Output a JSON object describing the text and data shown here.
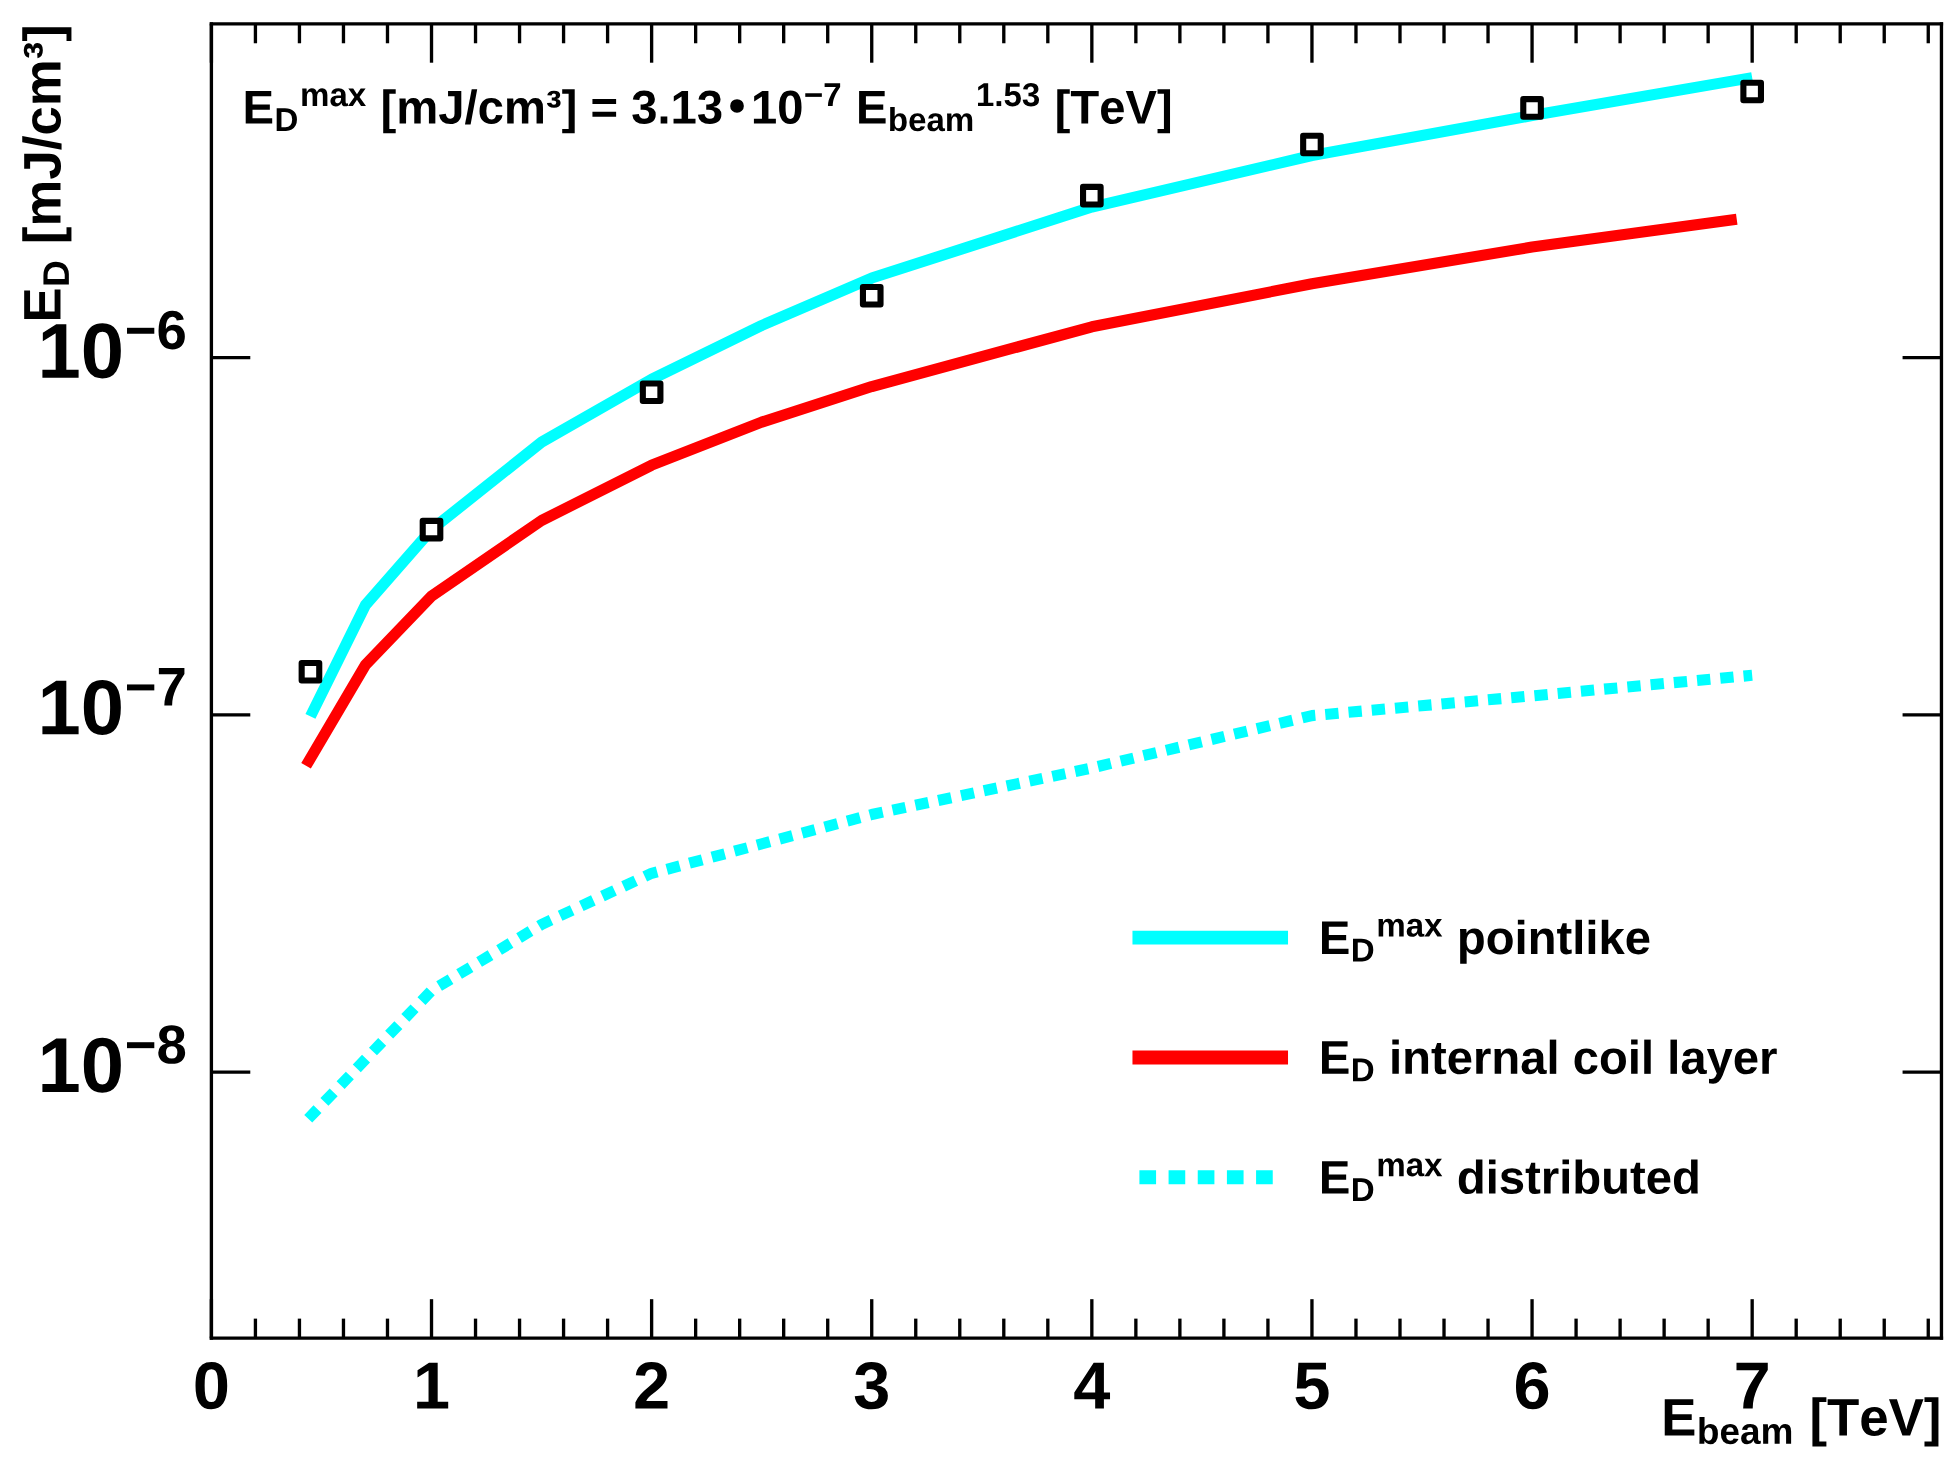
{
  "chart_data": {
    "type": "line",
    "xlabel": "E$_{beam}$ [TeV]",
    "ylabel": "E$_{D}$ [mJ/cm³]",
    "annotations": [
      "E$_{D}$$^{max}$ [mJ/cm³] = 3.13•10$^{−7}$ E$_{beam}$$^{1.53}$ [TeV]"
    ],
    "log": "y",
    "xlim": [
      0,
      7.86
    ],
    "ylim": [
      1.8e-09,
      8.6e-06
    ],
    "xticks": [
      0,
      1,
      2,
      3,
      4,
      5,
      6,
      7
    ],
    "yticks": [
      {
        "value": 1e-08,
        "label": "10$^{−8}$"
      },
      {
        "value": 1e-07,
        "label": "10$^{−7}$"
      },
      {
        "value": 1e-06,
        "label": "10$^{−6}$"
      }
    ],
    "grid": false,
    "legend": "bottom right",
    "series": [
      {
        "name": "E$_{D}$$^{max}$ pointlike",
        "type": "line",
        "color": "#00ffff",
        "line_style": "solid",
        "x": [
          0.45,
          0.7,
          1,
          1.5,
          2,
          2.5,
          3,
          4,
          5,
          6,
          7
        ],
        "values": [
          9.9e-08,
          2.03e-07,
          3.3e-07,
          5.8e-07,
          8.7e-07,
          1.23e-06,
          1.67e-06,
          2.64e-06,
          3.68e-06,
          4.76e-06,
          6.08e-06
        ]
      },
      {
        "name": "E$_{D}$ internal coil layer",
        "type": "line",
        "color": "#ff0000",
        "line_style": "solid",
        "x": [
          0.43,
          0.7,
          1,
          1.5,
          2,
          2.5,
          3,
          4,
          5,
          6,
          6.93
        ],
        "values": [
          7.2e-08,
          1.38e-07,
          2.15e-07,
          3.5e-07,
          5e-07,
          6.6e-07,
          8.3e-07,
          1.22e-06,
          1.61e-06,
          2.04e-06,
          2.44e-06
        ]
      },
      {
        "name": "E$_{D}$$^{max}$ distributed",
        "type": "line",
        "color": "#00ffff",
        "line_style": "dotted",
        "x": [
          0.44,
          1,
          1.5,
          2,
          3,
          4,
          5,
          6,
          7
        ],
        "values": [
          7.4e-09,
          1.69e-08,
          2.59e-08,
          3.6e-08,
          5.26e-08,
          7.1e-08,
          9.95e-08,
          1.13e-07,
          1.29e-07
        ]
      },
      {
        "type": "scatter",
        "color": "#000000",
        "marker": "square",
        "x": [
          0.45,
          1,
          2,
          3,
          4,
          5,
          6,
          7
        ],
        "values": [
          1.32e-07,
          3.3e-07,
          8e-07,
          1.49e-06,
          2.84e-06,
          3.95e-06,
          5e-06,
          5.56e-06
        ]
      }
    ]
  }
}
